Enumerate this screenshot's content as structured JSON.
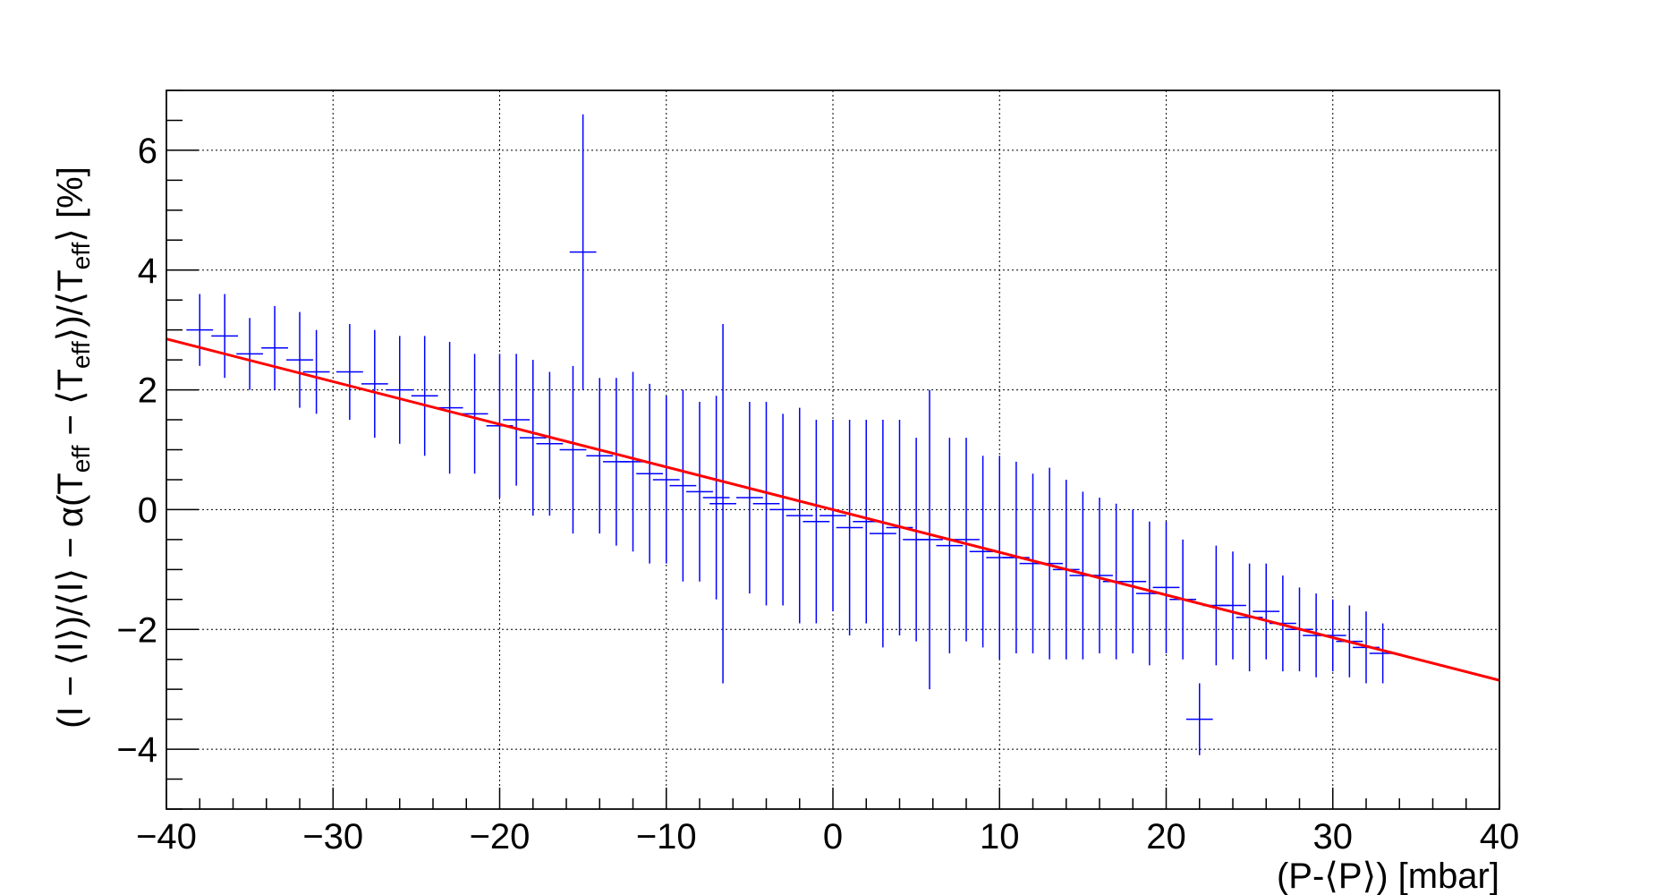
{
  "chart_data": {
    "type": "scatter",
    "title": "",
    "xlabel": "(P-⟨P⟩) [mbar]",
    "ylabel": {
      "p1": "(I − ⟨I⟩)/⟨I⟩ − α(T",
      "s1": "eff",
      "p2": " − ⟨T",
      "s2": "eff",
      "p3": "⟩)/⟨T",
      "s3": "eff",
      "p4": "⟩ [%]"
    },
    "xlim": [
      -40,
      40
    ],
    "ylim": [
      -5,
      7
    ],
    "xticks": [
      -40,
      -30,
      -20,
      -10,
      0,
      10,
      20,
      30,
      40
    ],
    "xtick_labels": [
      "−40",
      "−30",
      "−20",
      "−10",
      "0",
      "10",
      "20",
      "30",
      "40"
    ],
    "yticks": [
      -4,
      -2,
      0,
      2,
      4,
      6
    ],
    "ytick_labels": [
      "−4",
      "−2",
      "0",
      "2",
      "4",
      "6"
    ],
    "grid": true,
    "colors": {
      "points": "#0000ff",
      "fit": "#ff0000",
      "axes": "#000000",
      "grid": "#000000"
    },
    "fit_line": {
      "x": [
        -40,
        40
      ],
      "y": [
        2.85,
        -2.85
      ]
    },
    "series": [
      {
        "x": [
          -38,
          -36.5,
          -35,
          -33.5,
          -32,
          -31,
          -29,
          -27.5,
          -26,
          -24.5,
          -23,
          -21.5,
          -20,
          -19,
          -18,
          -17,
          -15.6,
          -15,
          -14,
          -13,
          -12,
          -11,
          -10,
          -9,
          -8,
          -7,
          -6.6,
          -5,
          -4,
          -3,
          -2,
          -1,
          0,
          1,
          2,
          3,
          4,
          5,
          5.8,
          7,
          8,
          9,
          10,
          11,
          12,
          13,
          14,
          15,
          16,
          17,
          18,
          19,
          20,
          21,
          22,
          23,
          24,
          25,
          26,
          27,
          28,
          29,
          30,
          31,
          32,
          33
        ],
        "y": [
          3.0,
          2.9,
          2.6,
          2.7,
          2.5,
          2.3,
          2.3,
          2.1,
          2.0,
          1.9,
          1.7,
          1.6,
          1.4,
          1.5,
          1.2,
          1.1,
          1.0,
          4.3,
          0.9,
          0.8,
          0.8,
          0.6,
          0.5,
          0.4,
          0.3,
          0.2,
          0.1,
          0.2,
          0.1,
          0.0,
          -0.1,
          -0.2,
          -0.1,
          -0.3,
          -0.2,
          -0.4,
          -0.3,
          -0.5,
          -0.5,
          -0.6,
          -0.5,
          -0.7,
          -0.8,
          -0.8,
          -0.9,
          -0.9,
          -1.0,
          -1.1,
          -1.1,
          -1.2,
          -1.2,
          -1.4,
          -1.3,
          -1.5,
          -3.5,
          -1.6,
          -1.6,
          -1.8,
          -1.7,
          -1.9,
          -2.0,
          -2.1,
          -2.1,
          -2.2,
          -2.3,
          -2.4
        ],
        "yerr": [
          0.6,
          0.7,
          0.6,
          0.7,
          0.8,
          0.7,
          0.8,
          0.9,
          0.9,
          1.0,
          1.1,
          1.0,
          1.2,
          1.1,
          1.3,
          1.2,
          1.4,
          2.3,
          1.3,
          1.4,
          1.5,
          1.5,
          1.4,
          1.6,
          1.5,
          1.7,
          3.0,
          1.6,
          1.7,
          1.6,
          1.8,
          1.7,
          1.6,
          1.8,
          1.7,
          1.9,
          1.8,
          1.7,
          2.5,
          1.8,
          1.7,
          1.6,
          1.7,
          1.6,
          1.5,
          1.6,
          1.5,
          1.4,
          1.3,
          1.3,
          1.2,
          1.2,
          1.1,
          1.0,
          0.6,
          1.0,
          0.9,
          0.9,
          0.8,
          0.8,
          0.7,
          0.7,
          0.6,
          0.6,
          0.6,
          0.5
        ],
        "xerr": [
          0.8,
          0.8,
          0.8,
          0.8,
          0.8,
          0.8,
          0.8,
          0.8,
          0.8,
          0.8,
          0.8,
          0.8,
          0.8,
          0.8,
          0.8,
          0.8,
          0.8,
          0.8,
          0.8,
          0.8,
          0.8,
          0.8,
          0.8,
          0.8,
          0.8,
          0.8,
          0.8,
          0.8,
          0.8,
          0.8,
          0.8,
          0.8,
          0.8,
          0.8,
          0.8,
          0.8,
          0.8,
          0.8,
          0.8,
          0.8,
          0.8,
          0.8,
          0.8,
          0.8,
          0.8,
          0.8,
          0.8,
          0.8,
          0.8,
          0.8,
          0.8,
          0.8,
          0.8,
          0.8,
          0.8,
          0.8,
          0.8,
          0.8,
          0.8,
          0.8,
          0.8,
          0.8,
          0.8,
          0.8,
          0.8,
          0.8
        ]
      }
    ]
  }
}
